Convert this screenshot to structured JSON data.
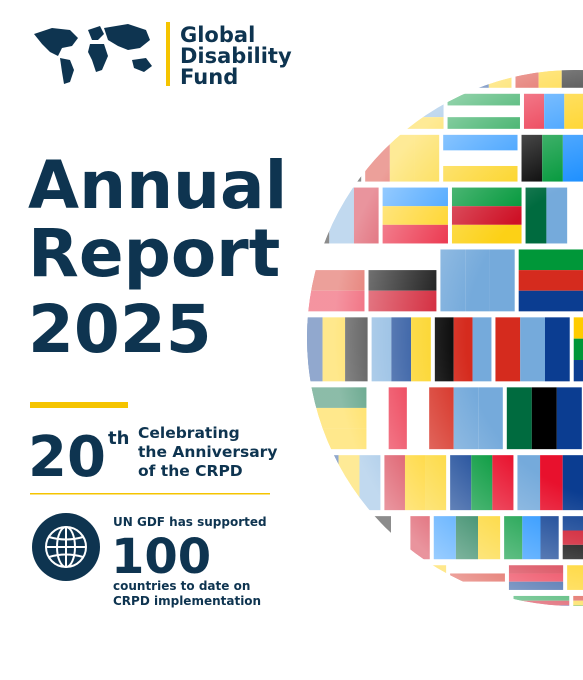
{
  "logo": {
    "lines": [
      "Global",
      "Disability",
      "Fund"
    ]
  },
  "title": {
    "lines": [
      "Annual",
      "Report",
      "2025"
    ]
  },
  "anniversary": {
    "number": "20",
    "suffix": "th",
    "lines": [
      "Celebrating",
      "the Anniversary",
      "of the CRPD"
    ]
  },
  "stat": {
    "intro": "UN GDF has supported",
    "number": "100",
    "lines": [
      "countries to date on",
      "CRPD implementation"
    ]
  }
}
